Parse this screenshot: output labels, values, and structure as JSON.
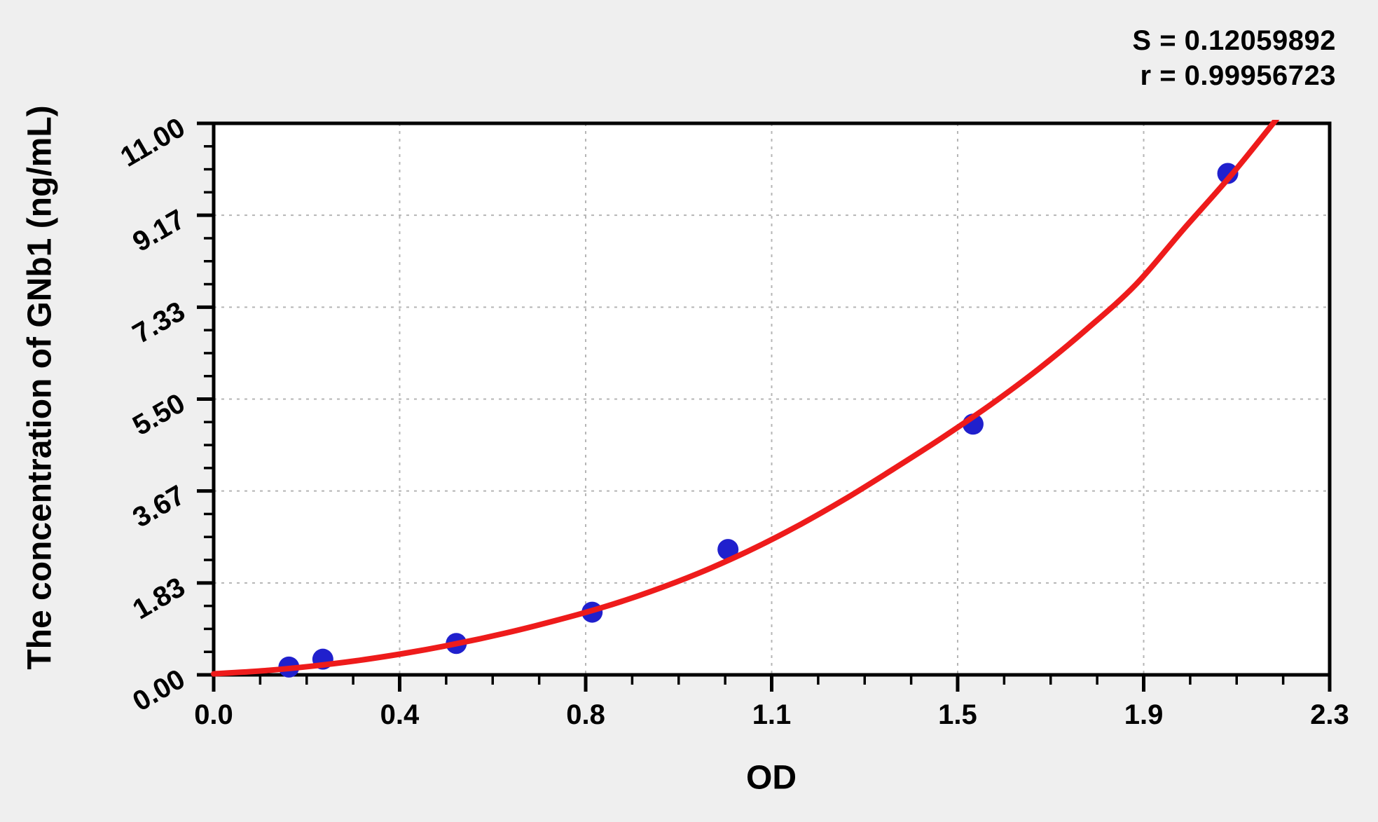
{
  "figure": {
    "background": "#efefef"
  },
  "chart_data": {
    "type": "scatter",
    "title": "",
    "xlabel": "OD",
    "ylabel": "The concentration of GNb1 (ng/mL)",
    "xlim": [
      0,
      2.3
    ],
    "ylim": [
      0,
      11
    ],
    "grid": "dashed gridlines at interior major ticks, both axes",
    "legend": "none",
    "x_ticks": {
      "values": [
        0,
        0.3833,
        0.7667,
        1.15,
        1.5333,
        1.9167,
        2.3
      ],
      "labels": [
        "0.0",
        "0.4",
        "0.8",
        "1.1",
        "1.5",
        "1.9",
        "2.3"
      ],
      "minor_per_interval": 3
    },
    "y_ticks": {
      "values": [
        0,
        1.8333,
        3.6667,
        5.5,
        7.3333,
        9.1667,
        11
      ],
      "labels": [
        "0.00",
        "1.83",
        "3.67",
        "5.50",
        "7.33",
        "9.17",
        "11.00"
      ],
      "minor_per_interval": 3
    },
    "series": [
      {
        "name": "standard-points",
        "type": "scatter",
        "color": "#2020cd",
        "points": [
          [
            0.155,
            0.156
          ],
          [
            0.225,
            0.312
          ],
          [
            0.5,
            0.625
          ],
          [
            0.78,
            1.25
          ],
          [
            1.06,
            2.5
          ],
          [
            1.565,
            5.0
          ],
          [
            2.09,
            10.0
          ]
        ]
      },
      {
        "name": "fitted-curve",
        "type": "line",
        "color": "#ee1b1b",
        "points": [
          [
            0,
            0.02
          ],
          [
            0.1,
            0.08
          ],
          [
            0.2,
            0.17
          ],
          [
            0.3,
            0.29
          ],
          [
            0.4,
            0.44
          ],
          [
            0.5,
            0.62
          ],
          [
            0.6,
            0.83
          ],
          [
            0.7,
            1.07
          ],
          [
            0.8,
            1.34
          ],
          [
            0.9,
            1.66
          ],
          [
            1.0,
            2.03
          ],
          [
            1.1,
            2.46
          ],
          [
            1.2,
            2.95
          ],
          [
            1.3,
            3.5
          ],
          [
            1.4,
            4.1
          ],
          [
            1.5,
            4.72
          ],
          [
            1.6,
            5.38
          ],
          [
            1.7,
            6.1
          ],
          [
            1.8,
            6.9
          ],
          [
            1.9,
            7.78
          ],
          [
            2.0,
            8.9
          ],
          [
            2.1,
            10.0
          ],
          [
            2.2,
            11.2
          ]
        ]
      }
    ],
    "annotations": {
      "lines": [
        "S = 0.12059892",
        "r = 0.99956723"
      ]
    },
    "colors": {
      "axis": "#000000",
      "grid": "#b5b5b5",
      "plot_background": "#ffffff",
      "figure_background": "#efefef"
    }
  }
}
